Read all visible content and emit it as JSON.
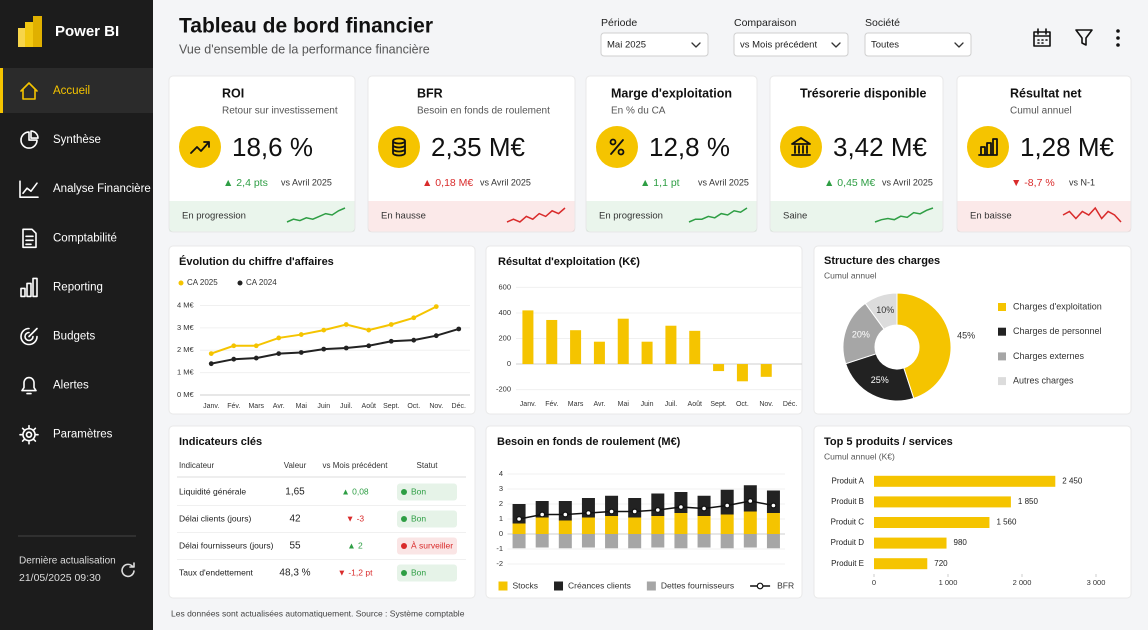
{
  "sidebar": {
    "brand": "Power BI",
    "nav": [
      "Accueil",
      "Synthèse",
      "Analyse Financière",
      "Comptabilité",
      "Reporting",
      "Budgets",
      "Alertes",
      "Paramètres"
    ],
    "active": 0,
    "update_label": "Dernière actualisation",
    "update_time": "21/05/2025 09:30"
  },
  "header": {
    "title": "Tableau de bord financier",
    "subtitle": "Vue d'ensemble de la performance financière",
    "filters": [
      {
        "label": "Période",
        "value": "Mai 2025"
      },
      {
        "label": "Comparaison",
        "value": "vs Mois précédent"
      },
      {
        "label": "Société",
        "value": "Toutes"
      }
    ]
  },
  "kpis": [
    {
      "title": "ROI",
      "subtitle": "Retour sur investissement",
      "value": "18,6 %",
      "delta": "▲ 2,4 pts",
      "compare": "vs Avril 2025",
      "status": "En progression",
      "color": "#2e9e44",
      "trend": [
        2,
        3,
        2.5,
        3.5,
        3,
        4,
        5,
        4.5,
        6,
        7
      ]
    },
    {
      "title": "BFR",
      "subtitle": "Besoin en fonds de roulement",
      "value": "2,35 M€",
      "delta": "▲ 0,18 M€",
      "compare": "vs Avril 2025",
      "status": "En hausse",
      "color": "#d92b2b",
      "trend": [
        2,
        3,
        2,
        4,
        3,
        5,
        4,
        6,
        5,
        7
      ]
    },
    {
      "title": "Marge d'exploitation",
      "subtitle": "En % du CA",
      "value": "12,8 %",
      "delta": "▲ 1,1 pt",
      "compare": "vs Avril 2025",
      "status": "En progression",
      "color": "#2e9e44",
      "trend": [
        2,
        3,
        3,
        4,
        3.5,
        5,
        4.5,
        6,
        5.5,
        7
      ]
    },
    {
      "title": "Trésorerie disponible",
      "value": "3,42 M€",
      "delta": "▲ 0,45 M€",
      "compare": "vs Avril 2025",
      "status": "Saine",
      "color": "#2e9e44",
      "trend": [
        1,
        2,
        2.5,
        2,
        3.5,
        3,
        5,
        4.5,
        6,
        7
      ]
    },
    {
      "title": "Résultat net",
      "subtitle": "Cumul annuel",
      "value": "1,28 M€",
      "delta": "▼ -8,7 %",
      "compare": "vs N-1",
      "status": "En baisse",
      "color": "#d92b2b",
      "trend": [
        5,
        6,
        4,
        6,
        5,
        7,
        4,
        6,
        5,
        3
      ]
    }
  ],
  "charts": [
    {
      "type": "line",
      "title": "Évolution du chiffre d'affaires",
      "categories": [
        "Janv.",
        "Fév.",
        "Mars",
        "Avr.",
        "Mai",
        "Juin",
        "Juil.",
        "Août",
        "Sept.",
        "Oct.",
        "Nov.",
        "Déc."
      ],
      "series": [
        {
          "name": "CA 2025",
          "color": "#f5c400",
          "values": [
            1.85,
            2.2,
            2.2,
            2.55,
            2.7,
            2.9,
            3.15,
            2.9,
            3.15,
            3.45,
            3.95,
            null
          ]
        },
        {
          "name": "CA 2024",
          "color": "#222222",
          "values": [
            1.4,
            1.6,
            1.65,
            1.85,
            1.9,
            2.05,
            2.1,
            2.2,
            2.4,
            2.45,
            2.65,
            2.95
          ]
        }
      ],
      "ylim": [
        0,
        4.2
      ],
      "yticks": [
        {
          "value": 0,
          "label": "0 M€"
        },
        {
          "value": 1,
          "label": "1 M€"
        },
        {
          "value": 2,
          "label": "2 M€"
        },
        {
          "value": 3,
          "label": "3 M€"
        },
        {
          "value": 4,
          "label": "4 M€"
        }
      ]
    },
    {
      "type": "bar",
      "title": "Résultat d'exploitation (K€)",
      "categories": [
        "Janv.",
        "Fév.",
        "Mars",
        "Avr.",
        "Mai",
        "Juin",
        "Juil.",
        "Août",
        "Sept.",
        "Oct.",
        "Nov.",
        "Déc."
      ],
      "values": [
        420,
        345,
        265,
        175,
        355,
        175,
        300,
        260,
        -55,
        -135,
        -100,
        null
      ],
      "color": "#f5c400",
      "ylim": [
        -250,
        650
      ],
      "yticks": [
        -200,
        0,
        200,
        400,
        600
      ]
    },
    {
      "type": "pie",
      "title": "Structure des charges",
      "subtitle": "Cumul annuel",
      "labels": [
        "Charges d'exploitation",
        "Charges de personnel",
        "Charges externes",
        "Autres charges"
      ],
      "values": [
        45,
        25,
        20,
        10
      ],
      "value_labels": [
        "45%",
        "25%",
        "20%",
        "10%"
      ],
      "colors": [
        "#f5c400",
        "#222222",
        "#a6a6a6",
        "#dcdcdc"
      ]
    },
    {
      "type": "bar",
      "stacked": true,
      "title": "Besoin en fonds de roulement (M€)",
      "categories": [
        null,
        null,
        null,
        null,
        null,
        null,
        null,
        null,
        null,
        null,
        null,
        null
      ],
      "series": [
        {
          "name": "Stocks",
          "color": "#f5c400",
          "values": [
            0.7,
            1.1,
            0.9,
            1.1,
            1.2,
            1.1,
            1.2,
            1.4,
            1.2,
            1.3,
            1.5,
            1.4
          ]
        },
        {
          "name": "Créances clients",
          "color": "#222222",
          "values": [
            1.3,
            1.1,
            1.3,
            1.3,
            1.35,
            1.3,
            1.5,
            1.4,
            1.35,
            1.65,
            1.75,
            1.5
          ]
        },
        {
          "name": "Dettes fournisseurs",
          "color": "#a6a6a6",
          "values": [
            -0.95,
            -0.9,
            -0.95,
            -0.9,
            -0.95,
            -0.95,
            -0.9,
            -0.95,
            -0.9,
            -0.95,
            -0.9,
            -0.95
          ]
        },
        {
          "name": "BFR",
          "type": "line",
          "color": "#111111",
          "values": [
            1.0,
            1.3,
            1.3,
            1.4,
            1.5,
            1.5,
            1.6,
            1.8,
            1.7,
            1.9,
            2.2,
            1.9
          ]
        }
      ],
      "ylim": [
        -2.2,
        4.4
      ],
      "yticks": [
        -2,
        -1,
        0,
        1,
        2,
        3,
        4
      ]
    },
    {
      "type": "bar",
      "horizontal": true,
      "title": "Top 5 produits / services",
      "subtitle": "Cumul annuel (K€)",
      "categories": [
        "Produit A",
        "Produit B",
        "Produit C",
        "Produit D",
        "Produit E"
      ],
      "values": [
        2450,
        1850,
        1560,
        980,
        720
      ],
      "value_labels": [
        "2 450",
        "1 850",
        "1 560",
        "980",
        "720"
      ],
      "color": "#f5c400",
      "xlim": [
        0,
        3000
      ],
      "xticks": [
        0,
        {
          "value": 1000,
          "label": "1 000"
        },
        {
          "value": 2000,
          "label": "2 000"
        },
        {
          "value": 3000,
          "label": "3 000"
        }
      ]
    }
  ],
  "table": {
    "title": "Indicateurs clés",
    "columns": [
      "Indicateur",
      "Valeur",
      "vs Mois précédent",
      "Statut"
    ],
    "rows": [
      [
        "Liquidité générale",
        "1,65",
        "▲ 0,08",
        "Bon"
      ],
      [
        "Délai clients (jours)",
        "42",
        "▼ -3",
        "Bon"
      ],
      [
        "Délai fournisseurs (jours)",
        "55",
        "▲ 2",
        "À surveiller"
      ],
      [
        "Taux d'endettement",
        "48,3 %",
        "▼ -1,2 pt",
        "Bon"
      ]
    ],
    "delta_colors": [
      "#2e9e44",
      "#d92b2b",
      "#2e9e44",
      "#d92b2b"
    ],
    "status_colors": [
      "#2e9e44",
      "#2e9e44",
      "#d92b2b",
      "#2e9e44"
    ]
  },
  "footer": "Les données sont actualisées automatiquement. Source : Système comptable"
}
